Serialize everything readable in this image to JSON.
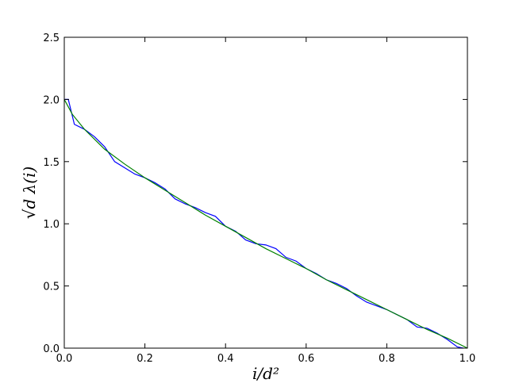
{
  "chart_data": {
    "type": "line",
    "x_label": "i/d²",
    "y_label": "√d λ(i)",
    "xlim": [
      0,
      1
    ],
    "ylim": [
      0,
      2.5
    ],
    "xticks": [
      {
        "value": 0,
        "label": "0.0"
      },
      0.2,
      0.4,
      0.6,
      0.8,
      {
        "value": 1,
        "label": "1.0"
      }
    ],
    "yticks": [
      {
        "value": 0,
        "label": "0.0"
      },
      0.5,
      {
        "value": 1,
        "label": "1.0"
      },
      1.5,
      {
        "value": 2,
        "label": "2.0"
      },
      2.5
    ],
    "series": [
      {
        "color": "#0000ff",
        "x": [
          0,
          0.01,
          0.025,
          0.05,
          0.075,
          0.1,
          0.125,
          0.15,
          0.175,
          0.2,
          0.225,
          0.25,
          0.275,
          0.3,
          0.325,
          0.35,
          0.375,
          0.4,
          0.425,
          0.45,
          0.475,
          0.5,
          0.525,
          0.55,
          0.575,
          0.6,
          0.625,
          0.65,
          0.675,
          0.7,
          0.725,
          0.75,
          0.775,
          0.8,
          0.825,
          0.85,
          0.875,
          0.9,
          0.925,
          0.95,
          0.975,
          0.99
        ],
        "values": [
          2.0,
          2.0,
          1.8,
          1.76,
          1.7,
          1.62,
          1.5,
          1.45,
          1.4,
          1.37,
          1.33,
          1.28,
          1.2,
          1.16,
          1.13,
          1.09,
          1.06,
          0.98,
          0.94,
          0.87,
          0.84,
          0.83,
          0.8,
          0.73,
          0.7,
          0.64,
          0.6,
          0.55,
          0.52,
          0.48,
          0.42,
          0.37,
          0.34,
          0.31,
          0.27,
          0.23,
          0.17,
          0.16,
          0.12,
          0.07,
          0.01,
          0.0
        ]
      },
      {
        "color": "#008000",
        "x": [
          0,
          0.02,
          0.05,
          0.1,
          0.15,
          0.2,
          0.25,
          0.3,
          0.35,
          0.4,
          0.45,
          0.5,
          0.55,
          0.6,
          0.65,
          0.7,
          0.75,
          0.8,
          0.85,
          0.9,
          0.95,
          1.0
        ],
        "values": [
          2.0,
          1.88,
          1.76,
          1.6,
          1.48,
          1.37,
          1.27,
          1.17,
          1.07,
          0.98,
          0.89,
          0.8,
          0.72,
          0.64,
          0.55,
          0.47,
          0.39,
          0.31,
          0.23,
          0.15,
          0.08,
          0.0
        ]
      }
    ]
  }
}
